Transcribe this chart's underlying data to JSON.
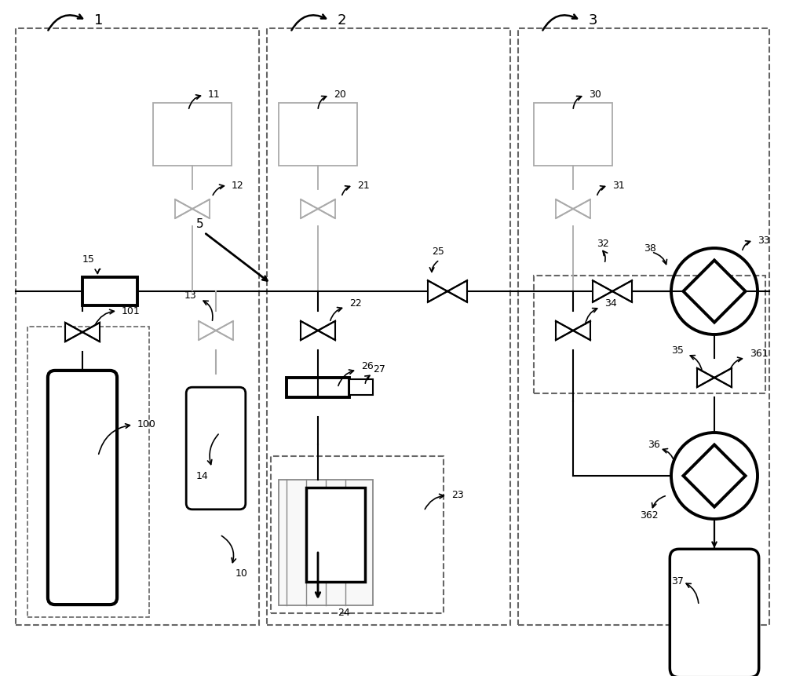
{
  "fig_width": 10.0,
  "fig_height": 8.61,
  "bg": "#ffffff",
  "lc": "#000000",
  "gc": "#aaaaaa",
  "dc": "#666666",
  "xlim": [
    0,
    100
  ],
  "ylim": [
    0,
    86.1
  ],
  "ML": 49.0
}
